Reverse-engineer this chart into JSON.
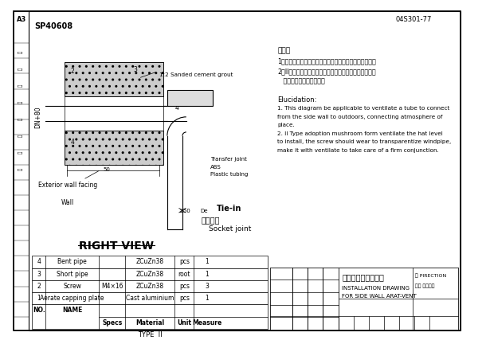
{
  "title_top_left": "A3",
  "title_top_right": "04S301-77",
  "drawing_no_top": "SP40608",
  "bg_color": "#ffffff",
  "border_color": "#000000",
  "line_color": "#000000",
  "hatch_color": "#888888",
  "label_color": "#000000",
  "text_color": "#000000",
  "right_view_label": "RIGHT VIEW",
  "note_cn_title": "说明：",
  "note_cn_1": "1、本图适用于通气管从侧墙接至室外，连通大气的场所。",
  "note_cn_2": "2、II型采用蘑菇形通气帽水平安装，螺丝应穿透通气管，",
  "note_cn_3": "   使其与通气管牢固连接。",
  "note_en_title": "Elucidation:",
  "note_en_1": "1. This diagram be applicable to ventilate a tube to connect",
  "note_en_2": "from the side wall to outdoors, connecting atmosphere of",
  "note_en_3": "place.",
  "note_en_4": "2. II Type adoption mushroom form ventilate the hat level",
  "note_en_5": "to install, the screw should wear to transparentize windpipe,",
  "note_en_6": "make it with ventilate to take care of a firm conjunction.",
  "label_1_2_sanded": "1:2 Sanded cement grout",
  "label_transfer": "Transfer joint",
  "label_abs": "ABS",
  "label_plastic": "Plastic tubing",
  "label_tie_in": "Tie-in",
  "label_cn_tie": "承插粘接",
  "label_socket": "Socket joint",
  "label_exterior": "Exterior wall facing",
  "label_wall": "Wall",
  "label_dn80": "DN+80",
  "label_50": "50",
  "label_50_2": "≥50",
  "label_de": "De",
  "bom_rows": [
    [
      "4",
      "Bent pipe",
      "",
      "ZCuZn38",
      "pcs",
      "1"
    ],
    [
      "3",
      "Short pipe",
      "",
      "ZCuZn38",
      "root",
      "1"
    ],
    [
      "2",
      "Screw",
      "M4×16",
      "ZCuZn38",
      "pcs",
      "3"
    ],
    [
      "1",
      "Aerate capping plate",
      "",
      "Cast aluminium",
      "pcs",
      "1"
    ]
  ],
  "bom_header": [
    "NO.",
    "NAME",
    "Specs",
    "Material",
    "Unit",
    "Measure"
  ],
  "bom_type": "TYPE  II",
  "title_block_cn": "侧墙式通气帽安装图",
  "title_block_en1": "INSTALLATION DRAWING",
  "title_block_en2": "FOR SIDE WALL ARAT-VENT",
  "title_block_label1": "监 PIRECTION",
  "title_block_label2": "设计 陈设计院"
}
